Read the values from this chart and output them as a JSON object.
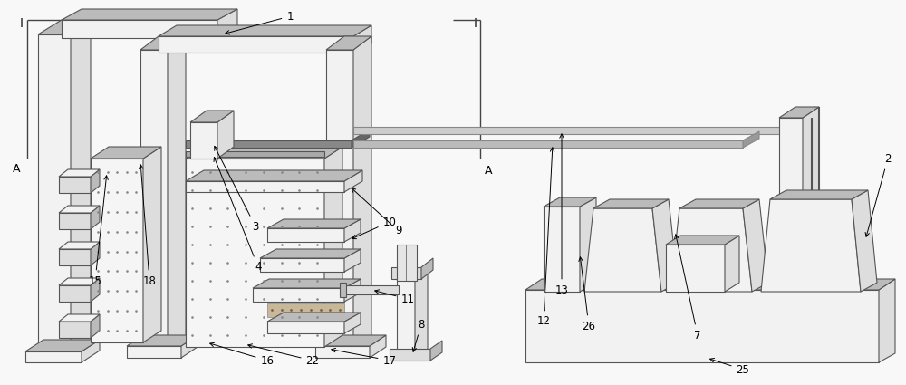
{
  "bg_color": "#f8f8f8",
  "lc": "#555555",
  "lc_dark": "#333333",
  "fc_light": "#f2f2f2",
  "fc_mid": "#dddddd",
  "fc_dark": "#bbbbbb",
  "fc_vdark": "#999999",
  "figsize": [
    10.0,
    4.25
  ],
  "dpi": 100,
  "lw": 0.8,
  "lw2": 1.2
}
